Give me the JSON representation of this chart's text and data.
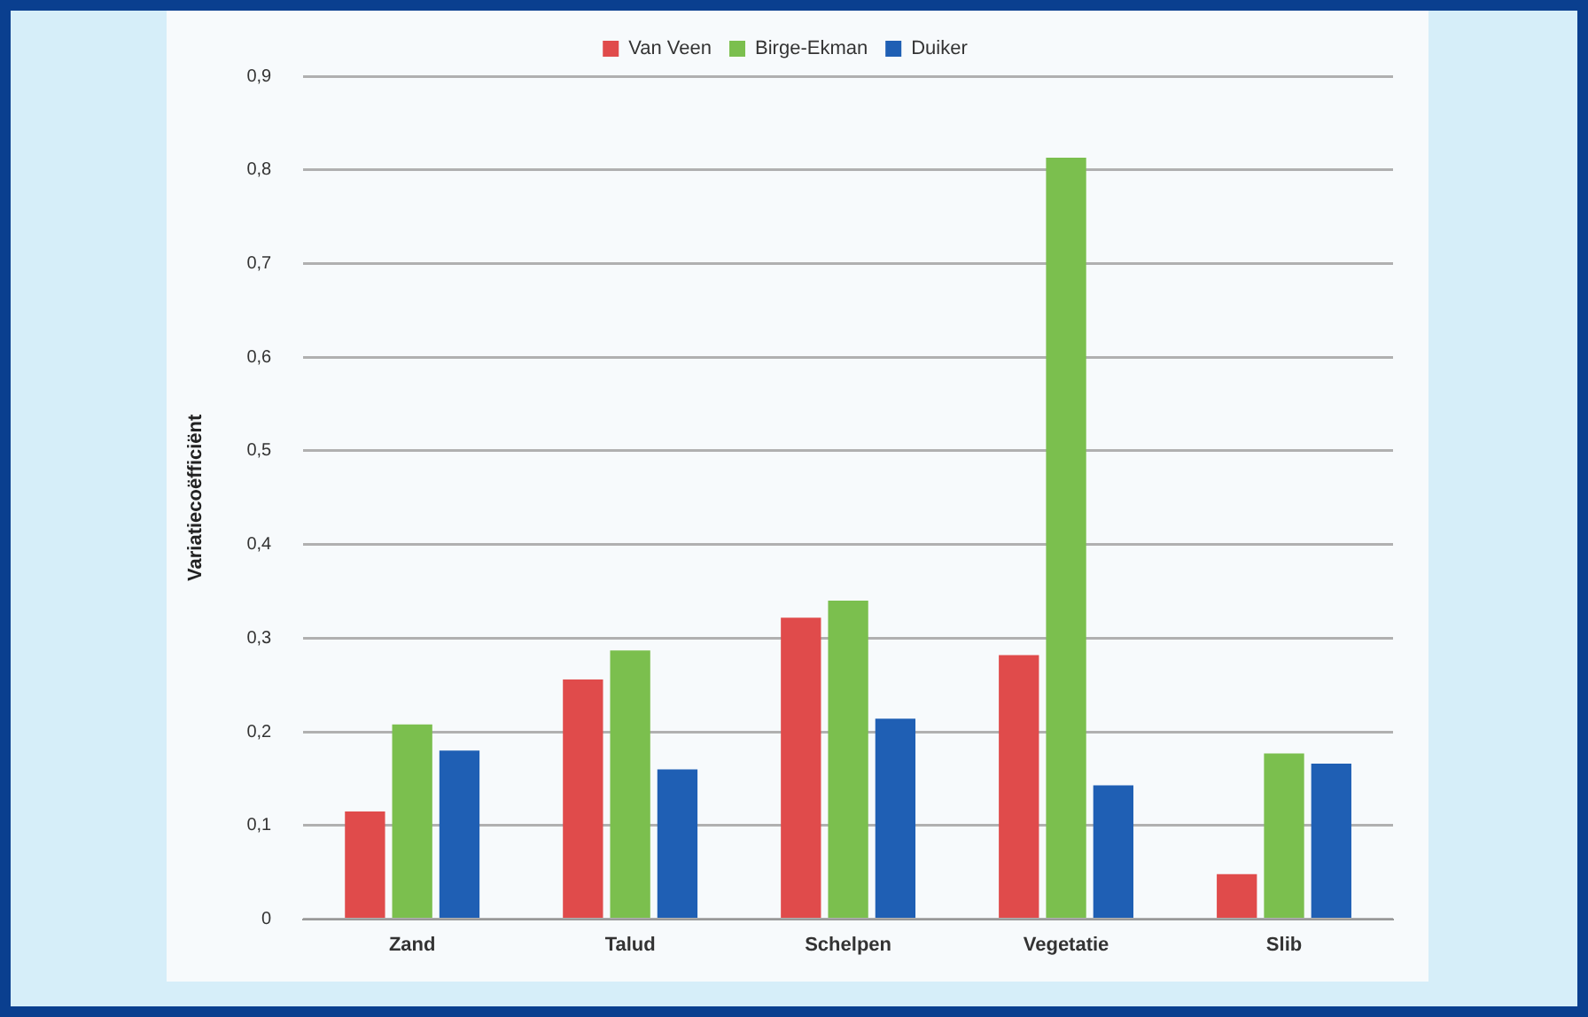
{
  "chart_data": {
    "type": "bar",
    "ylabel": "Variatiecoëfficiënt",
    "categories": [
      "Zand",
      "Talud",
      "Schelpen",
      "Vegetatie",
      "Slib"
    ],
    "series": [
      {
        "name": "Van Veen",
        "color": "#e04b4b",
        "values": [
          0.115,
          0.256,
          0.322,
          0.282,
          0.048
        ]
      },
      {
        "name": "Birge-Ekman",
        "color": "#7bbf4e",
        "values": [
          0.208,
          0.287,
          0.34,
          0.813,
          0.177
        ]
      },
      {
        "name": "Duiker",
        "color": "#1f5fb4",
        "values": [
          0.18,
          0.16,
          0.214,
          0.143,
          0.166
        ]
      }
    ],
    "ylim": [
      0,
      0.9
    ],
    "yticks": [
      {
        "value": 0,
        "label": "0"
      },
      {
        "value": 0.1,
        "label": "0,1"
      },
      {
        "value": 0.2,
        "label": "0,2"
      },
      {
        "value": 0.3,
        "label": "0,3"
      },
      {
        "value": 0.4,
        "label": "0,4"
      },
      {
        "value": 0.5,
        "label": "0,5"
      },
      {
        "value": 0.6,
        "label": "0,6"
      },
      {
        "value": 0.7,
        "label": "0,7"
      },
      {
        "value": 0.8,
        "label": "0,8"
      },
      {
        "value": 0.9,
        "label": "0,9"
      }
    ],
    "grid": "y",
    "legend": "top"
  }
}
